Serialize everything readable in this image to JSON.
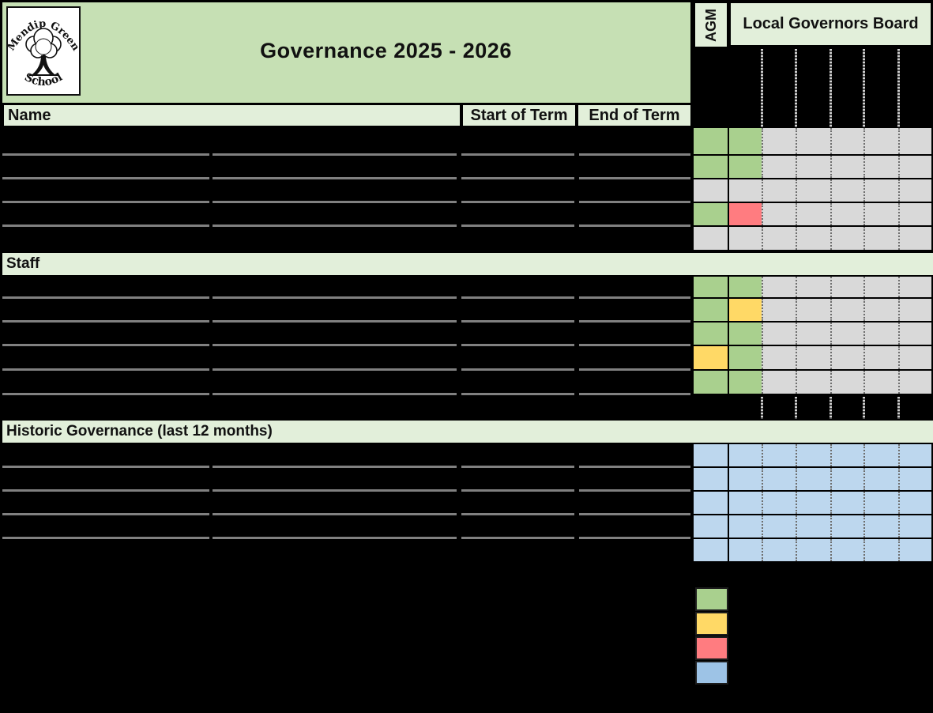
{
  "school_logo": {
    "arc_top": "Mendip Green",
    "arc_bottom": "School"
  },
  "header": {
    "title": "Governance 2025 - 2026"
  },
  "table": {
    "name_col": "Name",
    "start_col": "Start of Term",
    "end_col": "End of Term",
    "agm_col": "AGM",
    "board_col": "Local Governors Board",
    "board_subcolumns": 6
  },
  "sections": {
    "governors": {
      "rows": [
        {
          "agm": "green",
          "board": [
            "green",
            "gray",
            "gray",
            "gray",
            "gray",
            "gray"
          ]
        },
        {
          "agm": "green",
          "board": [
            "green",
            "gray",
            "gray",
            "gray",
            "gray",
            "gray"
          ]
        },
        {
          "agm": "gray",
          "board": [
            "gray",
            "gray",
            "gray",
            "gray",
            "gray",
            "gray"
          ]
        },
        {
          "agm": "green",
          "board": [
            "red",
            "gray",
            "gray",
            "gray",
            "gray",
            "gray"
          ]
        },
        {
          "agm": "gray",
          "board": [
            "gray",
            "gray",
            "gray",
            "gray",
            "gray",
            "gray"
          ]
        }
      ]
    },
    "staff": {
      "label": "Staff",
      "rows": [
        {
          "agm": "green",
          "board": [
            "green",
            "gray",
            "gray",
            "gray",
            "gray",
            "gray"
          ]
        },
        {
          "agm": "green",
          "board": [
            "yellow",
            "gray",
            "gray",
            "gray",
            "gray",
            "gray"
          ]
        },
        {
          "agm": "green",
          "board": [
            "green",
            "gray",
            "gray",
            "gray",
            "gray",
            "gray"
          ]
        },
        {
          "agm": "yellow",
          "board": [
            "green",
            "gray",
            "gray",
            "gray",
            "gray",
            "gray"
          ]
        },
        {
          "agm": "green",
          "board": [
            "green",
            "gray",
            "gray",
            "gray",
            "gray",
            "gray"
          ]
        }
      ]
    },
    "historic": {
      "label": "Historic Governance (last 12 months)",
      "rows": [
        {
          "agm": "blue",
          "board": [
            "blue",
            "blue",
            "blue",
            "blue",
            "blue",
            "blue"
          ]
        },
        {
          "agm": "blue",
          "board": [
            "blue",
            "blue",
            "blue",
            "blue",
            "blue",
            "blue"
          ]
        },
        {
          "agm": "blue",
          "board": [
            "blue",
            "blue",
            "blue",
            "blue",
            "blue",
            "blue"
          ]
        },
        {
          "agm": "blue",
          "board": [
            "blue",
            "blue",
            "blue",
            "blue",
            "blue",
            "blue"
          ]
        },
        {
          "agm": "blue",
          "board": [
            "blue",
            "blue",
            "blue",
            "blue",
            "blue",
            "blue"
          ]
        }
      ]
    }
  },
  "legend": [
    {
      "color": "green"
    },
    {
      "color": "yellow"
    },
    {
      "color": "red"
    },
    {
      "color": "legend_blue"
    }
  ],
  "colors": {
    "title_band": "#C6E0B4",
    "header_fill": "#E2EFDA",
    "green": "#A9D08E",
    "yellow": "#FFD966",
    "red": "#FF7C80",
    "blue": "#BDD7EE",
    "legend_blue": "#9DC3E6",
    "gray": "#D9D9D9",
    "redaction": "#000000",
    "row_line": "#808080"
  }
}
